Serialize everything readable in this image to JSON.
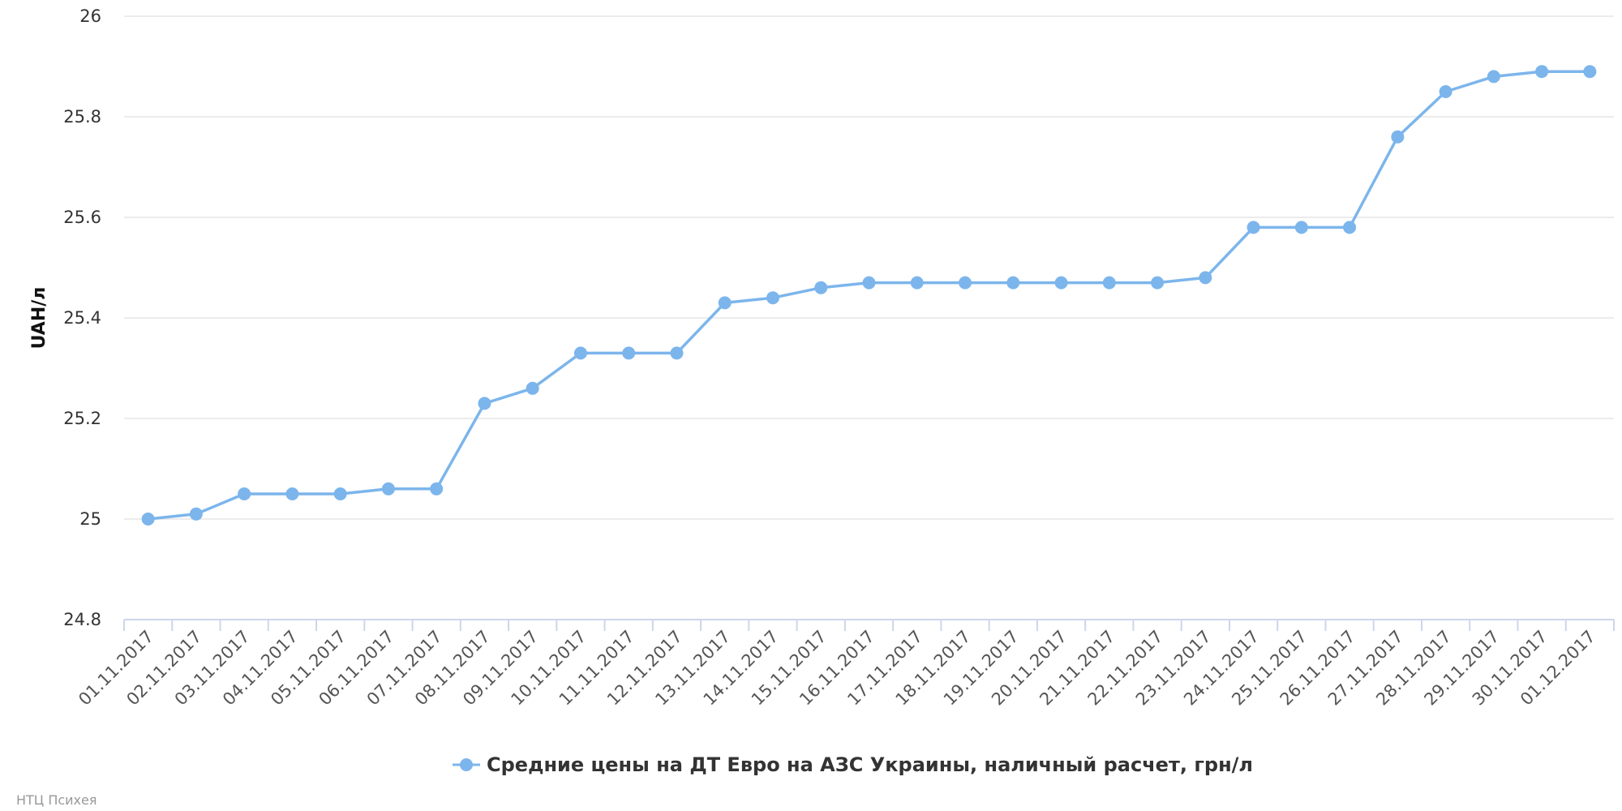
{
  "chart_data": {
    "type": "line",
    "ylabel": "UAH/л",
    "xlabel": "",
    "ylim": [
      24.8,
      26
    ],
    "yticks": [
      "24.8",
      "25",
      "25.2",
      "25.4",
      "25.6",
      "25.8",
      "26"
    ],
    "grid": true,
    "legend_position": "bottom-center",
    "categories": [
      "01.11.2017",
      "02.11.2017",
      "03.11.2017",
      "04.11.2017",
      "05.11.2017",
      "06.11.2017",
      "07.11.2017",
      "08.11.2017",
      "09.11.2017",
      "10.11.2017",
      "11.11.2017",
      "12.11.2017",
      "13.11.2017",
      "14.11.2017",
      "15.11.2017",
      "16.11.2017",
      "17.11.2017",
      "18.11.2017",
      "19.11.2017",
      "20.11.2017",
      "21.11.2017",
      "22.11.2017",
      "23.11.2017",
      "24.11.2017",
      "25.11.2017",
      "26.11.2017",
      "27.11.2017",
      "28.11.2017",
      "29.11.2017",
      "30.11.2017",
      "01.12.2017"
    ],
    "series": [
      {
        "name": "Средние цены на ДТ Евро на АЗС Украины, наличный расчет, грн/л",
        "color": "#7cb5ec",
        "values": [
          25.0,
          25.01,
          25.05,
          25.05,
          25.05,
          25.06,
          25.06,
          25.23,
          25.26,
          25.33,
          25.33,
          25.33,
          25.43,
          25.44,
          25.46,
          25.47,
          25.47,
          25.47,
          25.47,
          25.47,
          25.47,
          25.47,
          25.48,
          25.58,
          25.58,
          25.58,
          25.76,
          25.85,
          25.88,
          25.89,
          25.89
        ]
      }
    ]
  },
  "credit": "НТЦ Психея"
}
